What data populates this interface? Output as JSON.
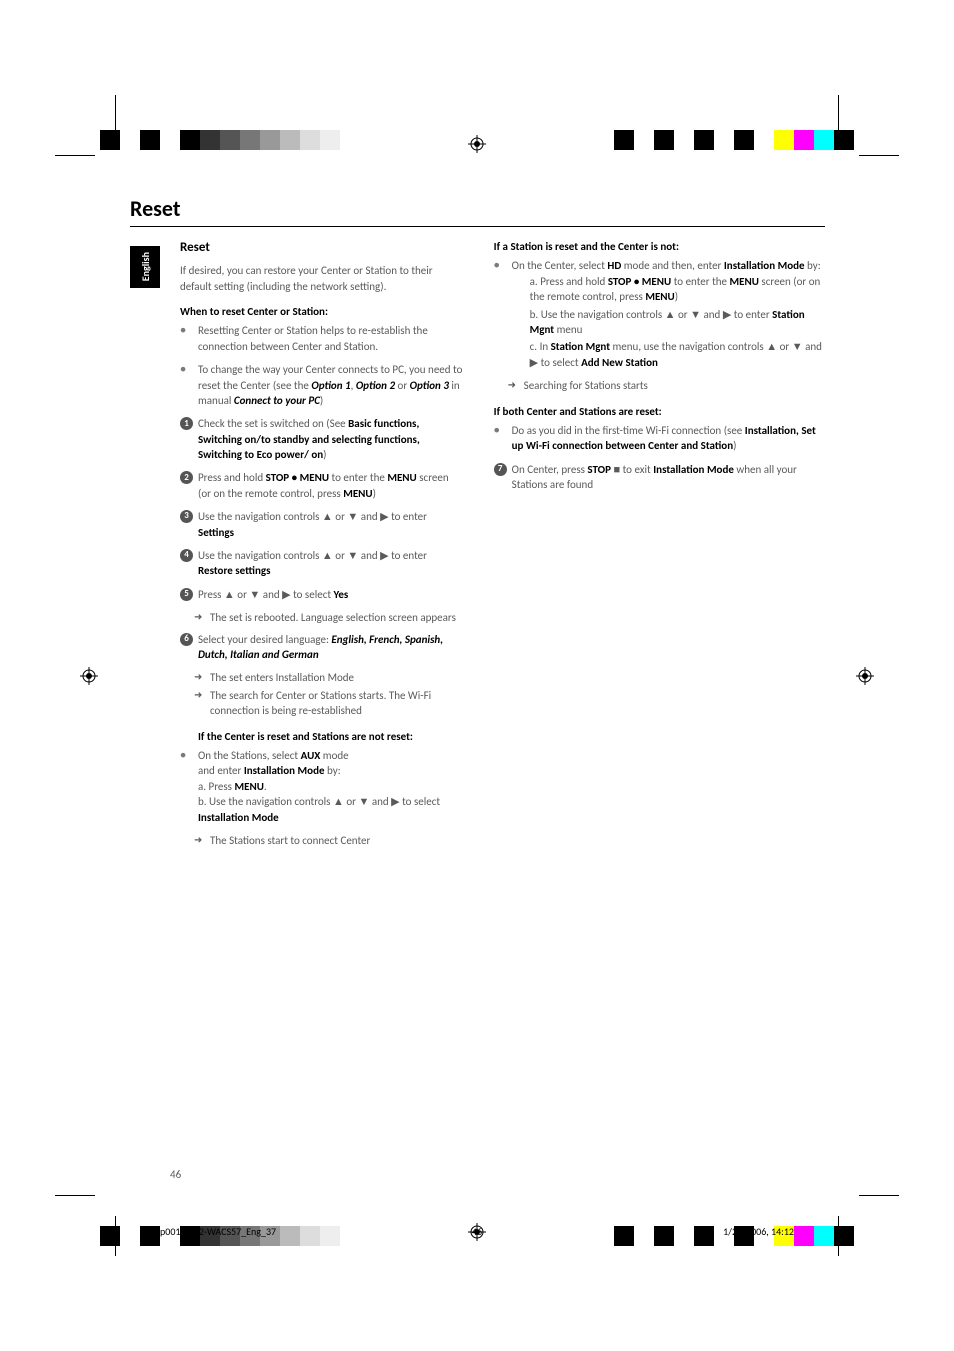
{
  "page": {
    "title": "Reset",
    "number": "46",
    "side_tab": "English",
    "footer_left": "p001-P052-WACS57_Eng_37",
    "footer_mid": "46",
    "footer_right": "1/25/2006, 14:12"
  },
  "regmarks": {
    "colors_left": [
      "#000000",
      "#ffffff",
      "#000000",
      "#ffffff",
      "#000000",
      "#333333",
      "#555555",
      "#777777",
      "#999999",
      "#bbbbbb",
      "#dddddd",
      "#eeeeee"
    ],
    "colors_right": [
      "#000000",
      "#ffffff",
      "#000000",
      "#ffffff",
      "#000000",
      "#ffffff",
      "#000000",
      "#ffffff",
      "#ffff00",
      "#ff00ff",
      "#00ffff",
      "#000000"
    ]
  },
  "left_col": {
    "section_title": "Reset",
    "intro": "If desired, you can restore your Center or Station to their default setting (including the network setting).",
    "when_head": "When to reset Center or Station:",
    "bullets": [
      "Resetting Center or Station helps to re-establish the connection between Center and Station.",
      "To change the way your Center connects to PC, you need to reset the Center (see the "
    ],
    "bullet2_tail": "Connect to your PC",
    "opt1": "Option 1",
    "opt2": "Option 2",
    "opt3": "Option 3",
    "manual": " in manual ",
    "steps": [
      "Check the set is switched on (See ",
      "Press and hold ",
      "Use the navigation controls ▲ or ▼ and ▶ to enter ",
      "Use the navigation controls ▲ or ▼ and ▶ to enter ",
      "Press ▲ or ▼ and ▶ to select ",
      "Select your desired language: "
    ],
    "step1_b1": "Basic functions, Switching on/to standby and selecting functions, Switching to Eco power/ on",
    "step2_b1": "STOP • MENU",
    "step2_txt2": " to enter the ",
    "step2_b2": "MENU",
    "step2_txt3": " screen (or on the remote control, press ",
    "step2_b3": "MENU",
    "step3_b": "Settings",
    "step4_b": "Restore settings",
    "step5_b": "Yes",
    "step5_arrow": "The set is rebooted. Language selection screen appears",
    "step6_b": "English, French, Spanish, Dutch, Italian and German",
    "step6_arrow1": "The set enters Installation Mode",
    "step6_arrow2": "The search for Center or Stations starts. The Wi-Fi connection is being re-established",
    "if_center_head": "If the Center is reset and Stations are not reset:",
    "if_center_bullet": "On the Stations, select ",
    "aux": "AUX",
    "mode_txt": " mode",
    "enter_txt": "and enter ",
    "inst_mode": "Installation Mode",
    "by_txt": " by:",
    "a_press": "a. Press ",
    "menu_b": "MENU",
    "b_nav": "b. Use the navigation controls ▲ or ▼ and ▶ to select ",
    "if_center_arrow": "The Stations start to connect Center"
  },
  "right_col": {
    "if_station_head": "If a Station is reset and the Center is not:",
    "bullet1_txt": "On the Center, select ",
    "hd": "HD",
    "bullet1_txt2": " mode and then, enter ",
    "inst_mode": "Installation Mode",
    "by": " by:",
    "a_txt": "a. Press and hold ",
    "stop_menu": "STOP • MENU",
    "a_txt2": " to enter the ",
    "menu_b": "MENU",
    "a_txt3": " screen (or on the remote control, press ",
    "menu_b2": "MENU",
    "b_txt": "b. Use the navigation controls ▲ or ▼ and ▶ to enter ",
    "station_mgnt": "Station Mgnt",
    "b_txt2": " menu",
    "c_txt": "c. In ",
    "c_txt2": " menu,  use the navigation controls ▲ or ▼ and ▶ to select ",
    "add_new": "Add New Station",
    "arrow1": "Searching for Stations starts",
    "if_both_head": "If both Center and Stations are reset:",
    "both_bullet": "Do as you did in the first-time Wi-Fi connection (see ",
    "both_b": "Installation, Set up Wi-Fi connection between Center and Station",
    "step7_txt": "On Center, press ",
    "stop": "STOP",
    "stop_sq": " ■ ",
    "step7_txt2": "to exit ",
    "step7_b": "Installation Mode",
    "step7_txt3": " when all your Stations are found"
  }
}
